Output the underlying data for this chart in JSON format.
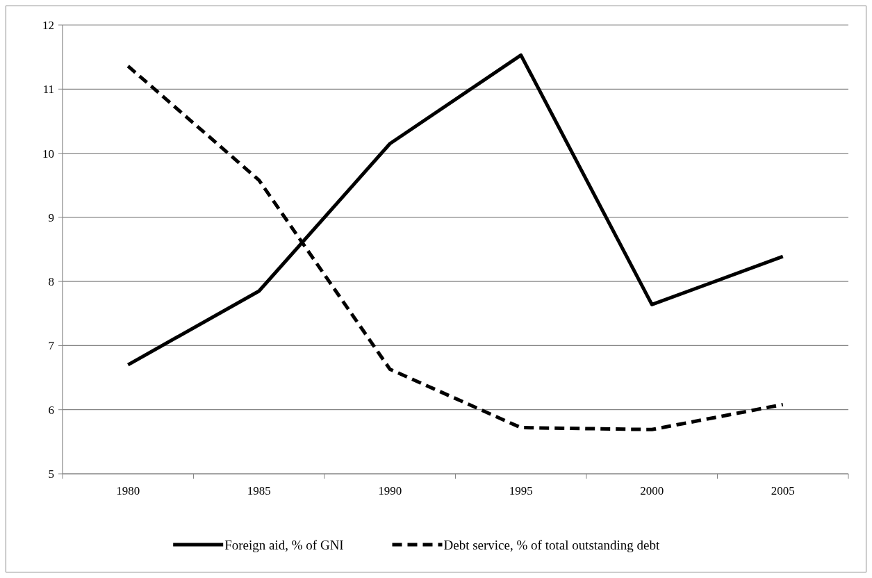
{
  "chart_data": {
    "type": "line",
    "categories": [
      "1980",
      "1985",
      "1990",
      "1995",
      "2000",
      "2005"
    ],
    "series": [
      {
        "name": "Foreign aid, % of GNI",
        "color": "#000000",
        "line_style": "solid",
        "values": [
          6.7,
          7.85,
          10.15,
          11.53,
          7.64,
          8.39
        ]
      },
      {
        "name": "Debt service, % of total outstanding debt",
        "color": "#000000",
        "line_style": "dashed",
        "values": [
          11.36,
          9.58,
          6.63,
          5.72,
          5.69,
          6.08
        ]
      }
    ],
    "ylim": [
      5,
      12
    ],
    "yticks": [
      5,
      6,
      7,
      8,
      9,
      10,
      11,
      12
    ],
    "grid": "y",
    "legend": "bottom",
    "marker": "none"
  }
}
